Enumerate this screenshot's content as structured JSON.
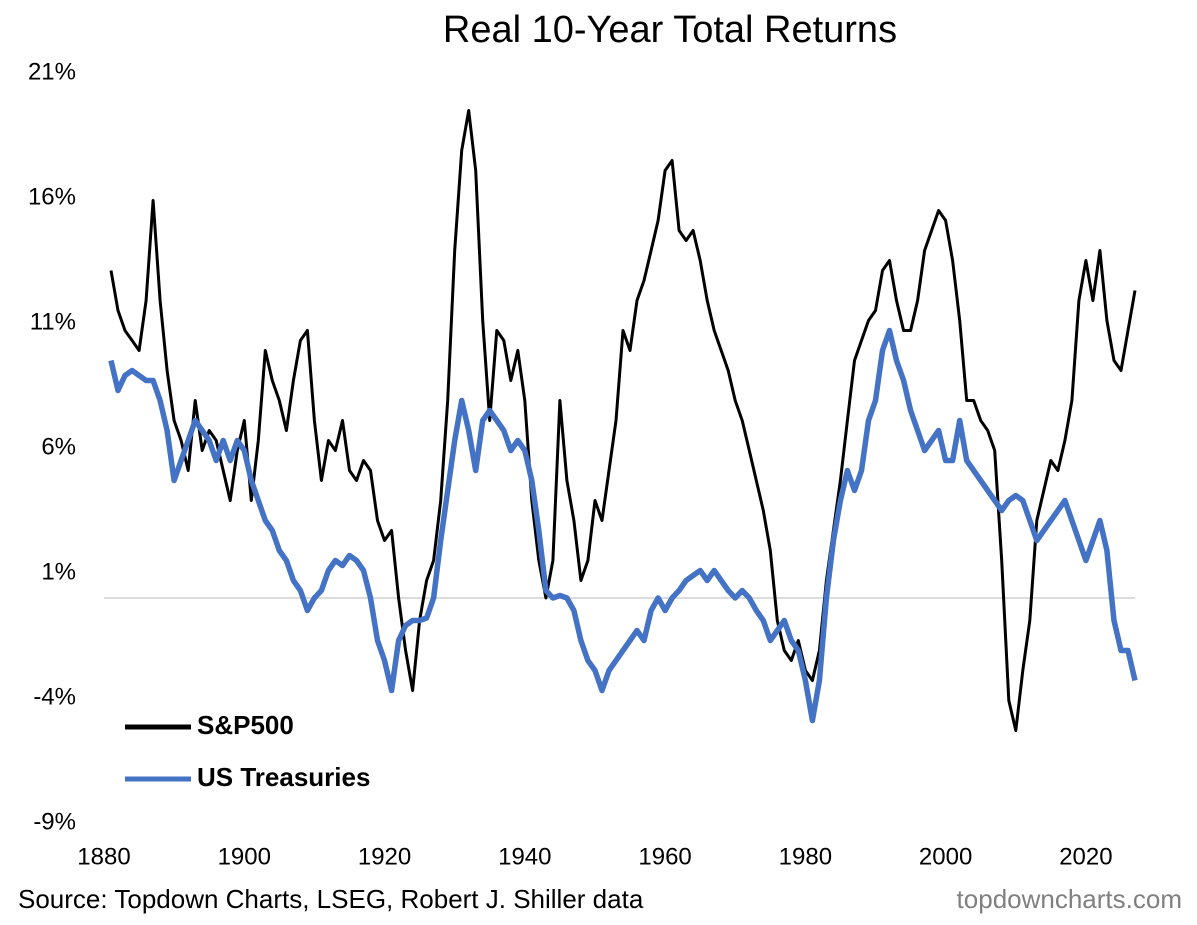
{
  "chart_data": {
    "type": "line",
    "title": "Real 10-Year Total Returns",
    "source": "Source: Topdown Charts, LSEG, Robert J. Shiller data",
    "watermark": "topdowncharts.com",
    "xlim": [
      1880,
      2027
    ],
    "xticks": [
      1880,
      1900,
      1920,
      1940,
      1960,
      1980,
      2000,
      2020
    ],
    "ylim": [
      -9,
      21
    ],
    "yticks": [
      {
        "value": -9,
        "label": "-9%"
      },
      {
        "value": -4,
        "label": "-4%"
      },
      {
        "value": 1,
        "label": "1%"
      },
      {
        "value": 6,
        "label": "6%"
      },
      {
        "value": 11,
        "label": "11%"
      },
      {
        "value": 16,
        "label": "16%"
      },
      {
        "value": 21,
        "label": "21%"
      }
    ],
    "reference_line": 0,
    "legend": "lower left",
    "x": [
      1881,
      1882,
      1883,
      1884,
      1885,
      1886,
      1887,
      1888,
      1889,
      1890,
      1891,
      1892,
      1893,
      1894,
      1895,
      1896,
      1897,
      1898,
      1899,
      1900,
      1901,
      1902,
      1903,
      1904,
      1905,
      1906,
      1907,
      1908,
      1909,
      1910,
      1911,
      1912,
      1913,
      1914,
      1915,
      1916,
      1917,
      1918,
      1919,
      1920,
      1921,
      1922,
      1923,
      1924,
      1925,
      1926,
      1927,
      1928,
      1929,
      1930,
      1931,
      1932,
      1933,
      1934,
      1935,
      1936,
      1937,
      1938,
      1939,
      1940,
      1941,
      1942,
      1943,
      1944,
      1945,
      1946,
      1947,
      1948,
      1949,
      1950,
      1951,
      1952,
      1953,
      1954,
      1955,
      1956,
      1957,
      1958,
      1959,
      1960,
      1961,
      1962,
      1963,
      1964,
      1965,
      1966,
      1967,
      1968,
      1969,
      1970,
      1971,
      1972,
      1973,
      1974,
      1975,
      1976,
      1977,
      1978,
      1979,
      1980,
      1981,
      1982,
      1983,
      1984,
      1985,
      1986,
      1987,
      1988,
      1989,
      1990,
      1991,
      1992,
      1993,
      1994,
      1995,
      1996,
      1997,
      1998,
      1999,
      2000,
      2001,
      2002,
      2003,
      2004,
      2005,
      2006,
      2007,
      2008,
      2009,
      2010,
      2011,
      2012,
      2013,
      2014,
      2015,
      2016,
      2017,
      2018,
      2019,
      2020,
      2021,
      2022,
      2023,
      2024,
      2025,
      2026,
      2027
    ],
    "series": [
      {
        "name": "S&P500",
        "color": "#000000",
        "values": [
          13.1,
          11.5,
          10.7,
          10.3,
          9.9,
          11.9,
          15.9,
          11.9,
          9.1,
          7.1,
          6.3,
          5.1,
          7.9,
          5.9,
          6.7,
          6.3,
          5.1,
          3.9,
          5.9,
          7.1,
          3.9,
          6.3,
          9.9,
          8.7,
          7.9,
          6.7,
          8.7,
          10.3,
          10.7,
          7.1,
          4.7,
          6.3,
          5.9,
          7.1,
          5.1,
          4.7,
          5.5,
          5.1,
          3.1,
          2.3,
          2.7,
          0,
          -2.1,
          -3.7,
          -0.9,
          0.7,
          1.5,
          3.9,
          7.9,
          13.9,
          17.9,
          19.5,
          17.1,
          11.1,
          7.1,
          10.7,
          10.3,
          8.7,
          9.9,
          7.9,
          3.9,
          1.5,
          0,
          1.5,
          7.9,
          4.7,
          3.1,
          0.7,
          1.5,
          3.9,
          3.1,
          5.1,
          7.1,
          10.7,
          9.9,
          11.9,
          12.7,
          13.9,
          15.1,
          17.1,
          17.5,
          14.7,
          14.3,
          14.7,
          13.5,
          11.9,
          10.7,
          9.9,
          9.1,
          7.9,
          7.1,
          5.9,
          4.7,
          3.5,
          1.9,
          -0.9,
          -2.1,
          -2.5,
          -1.7,
          -2.9,
          -3.3,
          -2.1,
          0.7,
          2.7,
          4.7,
          7.1,
          9.5,
          10.3,
          11.1,
          11.5,
          13.1,
          13.5,
          11.9,
          10.7,
          10.7,
          11.9,
          13.9,
          14.7,
          15.5,
          15.1,
          13.5,
          11.1,
          7.9,
          7.9,
          7.1,
          6.7,
          5.9,
          1.5,
          -4.1,
          -5.3,
          -2.9,
          -0.9,
          3.1,
          4.3,
          5.5,
          5.1,
          6.3,
          7.9,
          11.9,
          13.5,
          11.9,
          13.9,
          11.1,
          9.5,
          9.1,
          10.7,
          12.3
        ]
      },
      {
        "name": "US Treasuries",
        "color": "#4472c4",
        "values": [
          9.5,
          8.3,
          8.9,
          9.1,
          8.9,
          8.7,
          8.7,
          7.9,
          6.7,
          4.7,
          5.5,
          6.3,
          7.1,
          6.7,
          6.3,
          5.5,
          6.3,
          5.5,
          6.3,
          5.9,
          4.7,
          3.9,
          3.1,
          2.7,
          1.9,
          1.5,
          0.7,
          0.3,
          -0.5,
          0,
          0.3,
          1.1,
          1.5,
          1.3,
          1.7,
          1.5,
          1.1,
          0,
          -1.7,
          -2.5,
          -3.7,
          -1.7,
          -1.1,
          -0.9,
          -0.9,
          -0.8,
          0,
          2.3,
          4.3,
          6.3,
          7.9,
          6.7,
          5.1,
          7.1,
          7.5,
          7.1,
          6.7,
          5.9,
          6.3,
          5.9,
          4.7,
          2.7,
          0.3,
          0,
          0.1,
          0,
          -0.5,
          -1.7,
          -2.5,
          -2.9,
          -3.7,
          -2.9,
          -2.5,
          -2.1,
          -1.7,
          -1.3,
          -1.7,
          -0.5,
          0,
          -0.5,
          0,
          0.3,
          0.7,
          0.9,
          1.1,
          0.7,
          1.1,
          0.7,
          0.3,
          0,
          0.3,
          0,
          -0.5,
          -0.9,
          -1.7,
          -1.3,
          -0.9,
          -1.7,
          -2.1,
          -3.3,
          -4.9,
          -3.3,
          0,
          2.3,
          3.9,
          5.1,
          4.3,
          5.1,
          7.1,
          7.9,
          9.9,
          10.7,
          9.5,
          8.7,
          7.5,
          6.7,
          5.9,
          6.3,
          6.7,
          5.5,
          5.5,
          7.1,
          5.5,
          5.1,
          4.7,
          4.3,
          3.9,
          3.5,
          3.9,
          4.1,
          3.9,
          3.1,
          2.3,
          2.7,
          3.1,
          3.5,
          3.9,
          3.1,
          2.3,
          1.5,
          2.3,
          3.1,
          1.9,
          -0.9,
          -2.1,
          -2.1,
          -3.3
        ]
      }
    ]
  }
}
